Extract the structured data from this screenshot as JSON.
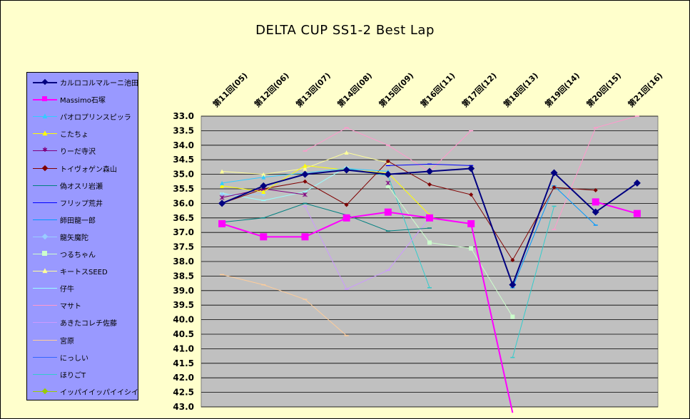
{
  "chart_data": {
    "type": "line",
    "title": "DELTA  CUP SS1-2 Best Lap",
    "xlabel": "",
    "ylabel": "",
    "categories": [
      "第11回(05)",
      "第12回(06)",
      "第13回(07)",
      "第14回(08)",
      "第15回(09)",
      "第16回(11)",
      "第17回(12)",
      "第18回(13)",
      "第19回(14)",
      "第20回(15)",
      "第21回(16)"
    ],
    "ylim": [
      33.0,
      43.0
    ],
    "y_inverted": true,
    "y_ticks": [
      "33.0",
      "33.5",
      "34.0",
      "34.5",
      "35.0",
      "35.5",
      "36.0",
      "36.5",
      "37.0",
      "37.5",
      "38.0",
      "38.5",
      "39.0",
      "39.5",
      "40.0",
      "40.5",
      "41.0",
      "41.5",
      "42.0",
      "42.5",
      "43.0"
    ],
    "grid": "horizontal",
    "legend_position": "left",
    "plot_background": "#C0C0C0",
    "series": [
      {
        "name": "カルロコルマルーニ池田",
        "color": "#000080",
        "marker": "diamond",
        "width": 2,
        "values": [
          36.0,
          35.4,
          35.0,
          34.85,
          35.0,
          34.9,
          34.8,
          38.8,
          34.95,
          36.3,
          35.3
        ]
      },
      {
        "name": "Massimo石塚",
        "color": "#FF00FF",
        "marker": "square",
        "width": 2,
        "values": [
          36.7,
          37.15,
          37.15,
          36.5,
          36.3,
          36.5,
          36.7,
          43.2,
          null,
          35.95,
          36.35
        ]
      },
      {
        "name": "パオロプリンスピッラ",
        "color": "#33CCFF",
        "marker": "triangle",
        "width": 1,
        "values": [
          35.3,
          35.1,
          34.95,
          34.8,
          34.9,
          null,
          null,
          null,
          null,
          null,
          null
        ]
      },
      {
        "name": "こたちょ",
        "color": "#FFFF00",
        "marker": "triangle",
        "width": 1,
        "values": [
          35.4,
          35.6,
          34.7,
          34.85,
          34.95,
          36.4,
          null,
          null,
          null,
          null,
          null
        ]
      },
      {
        "name": "りーだ寺沢",
        "color": "#800080",
        "marker": "star",
        "width": 1,
        "values": [
          35.8,
          35.5,
          35.7,
          null,
          35.3,
          null,
          null,
          null,
          null,
          null,
          null
        ]
      },
      {
        "name": "トイヴォゲン森山",
        "color": "#800000",
        "marker": "diamond",
        "width": 1,
        "values": [
          36.0,
          35.5,
          35.25,
          36.05,
          34.55,
          35.35,
          35.7,
          37.95,
          35.45,
          35.55,
          null
        ]
      },
      {
        "name": "偽オスリ岩瀬",
        "color": "#008080",
        "marker": "dash",
        "width": 1,
        "values": [
          36.65,
          36.5,
          36.0,
          36.4,
          36.95,
          36.85,
          null,
          null,
          null,
          null,
          null
        ]
      },
      {
        "name": "フリップ荒井",
        "color": "#0000FF",
        "marker": "dash",
        "width": 1,
        "values": [
          null,
          null,
          null,
          null,
          34.7,
          34.65,
          34.7,
          null,
          null,
          null,
          null
        ]
      },
      {
        "name": "師田龍一郎",
        "color": "#0099FF",
        "marker": "dash",
        "width": 1,
        "values": [
          null,
          null,
          null,
          null,
          null,
          null,
          null,
          38.9,
          35.4,
          36.75,
          null
        ]
      },
      {
        "name": "龍矢魔陀",
        "color": "#99CCFF",
        "marker": "diamond",
        "width": 1,
        "values": [
          35.7,
          35.7,
          null,
          null,
          null,
          null,
          null,
          null,
          null,
          null,
          null
        ]
      },
      {
        "name": "つるちゃん",
        "color": "#CCFFCC",
        "marker": "square",
        "width": 1,
        "values": [
          null,
          null,
          null,
          null,
          35.4,
          37.35,
          37.55,
          39.9,
          null,
          null,
          null
        ]
      },
      {
        "name": "キートスSEED",
        "color": "#FFFF99",
        "marker": "triangle",
        "width": 1,
        "values": [
          34.9,
          35.0,
          34.8,
          34.25,
          34.6,
          null,
          null,
          null,
          null,
          null,
          null
        ]
      },
      {
        "name": "仔牛",
        "color": "#99FFFF",
        "marker": "dash",
        "width": 1,
        "values": [
          35.65,
          35.9,
          35.6,
          34.75,
          null,
          null,
          null,
          null,
          null,
          null,
          null
        ]
      },
      {
        "name": "マサト",
        "color": "#FF99CC",
        "marker": "dash",
        "width": 1,
        "values": [
          null,
          null,
          34.2,
          33.4,
          34.0,
          34.9,
          33.5,
          null,
          36.9,
          33.4,
          33.0
        ]
      },
      {
        "name": "あきたコレチ佐藤",
        "color": "#CC99FF",
        "marker": "dash",
        "width": 1,
        "values": [
          null,
          null,
          36.1,
          38.95,
          38.3,
          36.5,
          null,
          null,
          null,
          null,
          null
        ]
      },
      {
        "name": "宮原",
        "color": "#FFCC99",
        "marker": "dash",
        "width": 1,
        "values": [
          38.45,
          38.8,
          39.3,
          40.55,
          null,
          null,
          null,
          null,
          null,
          null,
          null
        ]
      },
      {
        "name": "にっしい",
        "color": "#3366FF",
        "marker": "dash",
        "width": 1,
        "values": [
          null,
          null,
          null,
          null,
          null,
          null,
          null,
          null,
          null,
          null,
          null
        ]
      },
      {
        "name": "ほりごT",
        "color": "#33CCCC",
        "marker": "dash",
        "width": 1,
        "values": [
          null,
          null,
          null,
          34.8,
          35.05,
          38.9,
          null,
          41.3,
          36.1,
          null,
          null
        ]
      },
      {
        "name": "イッパイイッパイイシイ",
        "color": "#99CC00",
        "marker": "diamond",
        "width": 1,
        "values": [
          null,
          null,
          null,
          null,
          null,
          null,
          null,
          null,
          null,
          null,
          null
        ]
      }
    ]
  }
}
